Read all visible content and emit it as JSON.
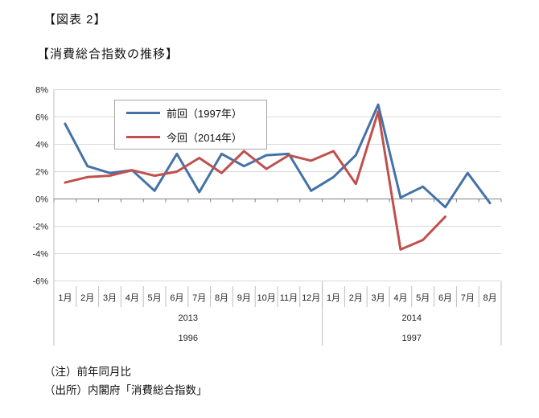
{
  "figure_label": "【図表 2】",
  "title": "【消費総合指数の推移】",
  "legend": {
    "items": [
      {
        "label": "前回（1997年）",
        "color": "#4472A8"
      },
      {
        "label": "今回（2014年）",
        "color": "#C0504D"
      }
    ]
  },
  "notes": {
    "note": "（注）前年同月比",
    "source": "（出所）内閣府「消費総合指数」"
  },
  "chart_data": {
    "type": "line",
    "title": "【消費総合指数の推移】",
    "xlabel": "",
    "ylabel": "",
    "categories": [
      "1月",
      "2月",
      "3月",
      "4月",
      "5月",
      "6月",
      "7月",
      "8月",
      "9月",
      "10月",
      "11月",
      "12月",
      "1月",
      "2月",
      "3月",
      "4月",
      "5月",
      "6月",
      "7月",
      "8月"
    ],
    "category_groups": [
      {
        "label_row1": "2013",
        "label_row2": "1996",
        "start": 0,
        "end": 11
      },
      {
        "label_row1": "2014",
        "label_row2": "1997",
        "start": 12,
        "end": 19
      }
    ],
    "series": [
      {
        "name": "前回（1997年）",
        "color": "#4472A8",
        "values": [
          5.5,
          2.4,
          1.9,
          2.1,
          0.6,
          3.3,
          0.5,
          3.3,
          2.4,
          3.2,
          3.3,
          0.6,
          1.6,
          3.2,
          6.9,
          0.1,
          0.9,
          -0.6,
          1.9,
          -0.3
        ]
      },
      {
        "name": "今回（2014年）",
        "color": "#C0504D",
        "values": [
          1.2,
          1.6,
          1.7,
          2.1,
          1.7,
          2.0,
          3.0,
          1.9,
          3.5,
          2.2,
          3.2,
          2.8,
          3.5,
          1.1,
          6.4,
          -3.7,
          -3.0,
          -1.3,
          null,
          null
        ]
      }
    ],
    "ylim": [
      -6,
      8
    ],
    "yticks": [
      {
        "value": 8,
        "label": "8%"
      },
      {
        "value": 6,
        "label": "6%"
      },
      {
        "value": 4,
        "label": "4%"
      },
      {
        "value": 2,
        "label": "2%"
      },
      {
        "value": 0,
        "label": "0%"
      },
      {
        "value": -2,
        "label": "-2%"
      },
      {
        "value": -4,
        "label": "-4%"
      },
      {
        "value": -6,
        "label": "-6%"
      }
    ],
    "grid": true,
    "legend_position": "inside-top-left"
  }
}
